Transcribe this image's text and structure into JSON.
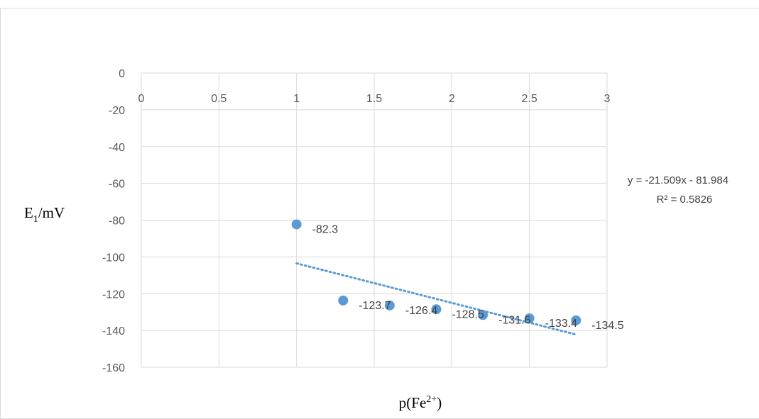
{
  "chart_data": {
    "type": "scatter",
    "title": "",
    "xlabel": "p(Fe",
    "xlabel_superscript": "2+",
    "xlabel_suffix": ")",
    "ylabel": "E",
    "ylabel_subscript": "1",
    "ylabel_suffix": "/mV",
    "xlim": [
      0,
      3
    ],
    "ylim": [
      -160,
      0
    ],
    "x_ticks": [
      "0",
      "0.5",
      "1",
      "1.5",
      "2",
      "2.5",
      "3"
    ],
    "y_ticks": [
      "0",
      "-20",
      "-40",
      "-60",
      "-80",
      "-100",
      "-120",
      "-140",
      "-160"
    ],
    "grid": true,
    "legend": "none",
    "series": [
      {
        "x": [
          1.0,
          1.3,
          1.6,
          1.9,
          2.2,
          2.5,
          2.8
        ],
        "y": [
          -82.3,
          -123.7,
          -126.4,
          -128.5,
          -131.6,
          -133.4,
          -134.5
        ],
        "labels": [
          "-82.3",
          "-123.7",
          "-126.4",
          "-128.5",
          "-131.6",
          "-133.4",
          "-134.5"
        ],
        "color": "#5b9bd5"
      }
    ],
    "trendline": {
      "type": "linear",
      "slope": -21.509,
      "intercept": -81.984,
      "x_range": [
        1.0,
        2.8
      ],
      "equation": "y = -21.509x - 81.984",
      "r_squared": "R² = 0.5826",
      "color": "#5b9bd5"
    }
  },
  "colors": {
    "gridline": "#d9d9d9",
    "marker": "#5b9bd5",
    "tick_text": "#595959"
  }
}
